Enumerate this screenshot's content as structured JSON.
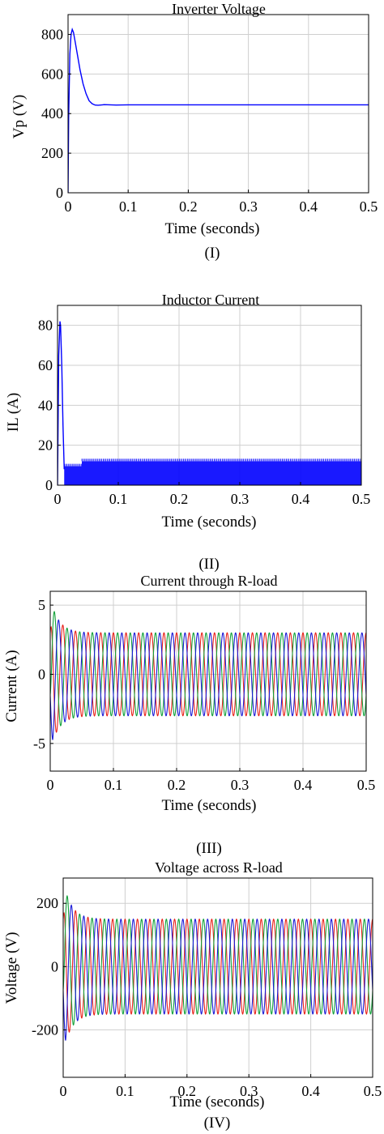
{
  "chart_data": [
    {
      "type": "line",
      "title": "Inverter Voltage",
      "xlabel": "Time (seconds)",
      "ylabel": "Vp (V)",
      "caption": "(I)",
      "xlim": [
        0,
        0.5
      ],
      "ylim": [
        0,
        900
      ],
      "xticks": [
        0,
        0.1,
        0.2,
        0.3,
        0.4,
        0.5
      ],
      "xtick_labels": [
        "0",
        "0.1",
        "0.2",
        "0.3",
        "0.4",
        "0.5"
      ],
      "yticks": [
        0,
        200,
        400,
        600,
        800
      ],
      "ytick_labels": [
        "0",
        "200",
        "400",
        "600",
        "800"
      ],
      "grid": true,
      "series": [
        {
          "color": "#0000ff",
          "x": [
            0,
            0.001,
            0.003,
            0.005,
            0.007,
            0.009,
            0.012,
            0.016,
            0.02,
            0.025,
            0.03,
            0.035,
            0.04,
            0.045,
            0.05,
            0.06,
            0.08,
            0.1,
            0.2,
            0.3,
            0.4,
            0.5
          ],
          "y": [
            0,
            380,
            700,
            800,
            825,
            810,
            760,
            690,
            620,
            550,
            500,
            465,
            450,
            443,
            442,
            445,
            443,
            444,
            444,
            444,
            444,
            444
          ]
        }
      ]
    },
    {
      "type": "line",
      "title": "Inductor Current",
      "xlabel": "Time (seconds)",
      "ylabel": "IL (A)",
      "caption": "(II)",
      "xlim": [
        0,
        0.5
      ],
      "ylim": [
        0,
        90
      ],
      "xticks": [
        0,
        0.1,
        0.2,
        0.3,
        0.4,
        0.5
      ],
      "xtick_labels": [
        "0",
        "0.1",
        "0.2",
        "0.3",
        "0.4",
        "0.5"
      ],
      "yticks": [
        0,
        20,
        40,
        60,
        80
      ],
      "ytick_labels": [
        "0",
        "20",
        "40",
        "60",
        "80"
      ],
      "grid": true,
      "series": [
        {
          "color": "#0000ff",
          "x": [
            0,
            0.002,
            0.004,
            0.005,
            0.007,
            0.009,
            0.011
          ],
          "y": [
            0,
            65,
            82,
            80,
            60,
            30,
            8
          ]
        }
      ],
      "ripple_band": {
        "color": "#0000ff",
        "segments": [
          {
            "x": [
              0.011,
              0.04
            ],
            "low": 0,
            "high": 9.5
          },
          {
            "x": [
              0.04,
              0.5
            ],
            "low": 0,
            "high": 12
          }
        ]
      }
    },
    {
      "type": "line",
      "title": "Current through R-load",
      "xlabel": "Time (seconds)",
      "ylabel": "Current (A)",
      "caption": "(III)",
      "xlim": [
        0,
        0.5
      ],
      "ylim": [
        -7,
        6
      ],
      "xticks": [
        0,
        0.1,
        0.2,
        0.3,
        0.4,
        0.5
      ],
      "xtick_labels": [
        "0",
        "0.1",
        "0.2",
        "0.3",
        "0.4",
        "0.5"
      ],
      "yticks": [
        -5,
        0,
        5
      ],
      "ytick_labels": [
        "-5",
        "0",
        "5"
      ],
      "grid": true,
      "waveform": {
        "kind": "three-phase-sine",
        "frequency_hz": 50,
        "steady_amplitude": 3,
        "transient_peak": 5.5,
        "settle_time": 0.04,
        "phases": [
          {
            "color": "#e8211a",
            "phase_deg": 90
          },
          {
            "color": "#13a13a",
            "phase_deg": -30
          },
          {
            "color": "#1b1bd6",
            "phase_deg": 210
          }
        ]
      }
    },
    {
      "type": "line",
      "title": "Voltage across R-load",
      "xlabel": "Time (seconds)",
      "ylabel": "Voltage (V)",
      "caption": "(IV)",
      "xlim": [
        0,
        0.5
      ],
      "ylim": [
        -350,
        280
      ],
      "xticks": [
        0,
        0.1,
        0.2,
        0.3,
        0.4,
        0.5
      ],
      "xtick_labels": [
        "0",
        "0.1",
        "0.2",
        "0.3",
        "0.4",
        "0.5"
      ],
      "yticks": [
        -200,
        0,
        200
      ],
      "ytick_labels": [
        "-200",
        "0",
        "200"
      ],
      "grid": true,
      "waveform": {
        "kind": "three-phase-sine",
        "frequency_hz": 50,
        "steady_amplitude": 150,
        "transient_peak": 270,
        "settle_time": 0.04,
        "phases": [
          {
            "color": "#e8211a",
            "phase_deg": 90
          },
          {
            "color": "#13a13a",
            "phase_deg": -30
          },
          {
            "color": "#1b1bd6",
            "phase_deg": 210
          }
        ]
      }
    }
  ]
}
